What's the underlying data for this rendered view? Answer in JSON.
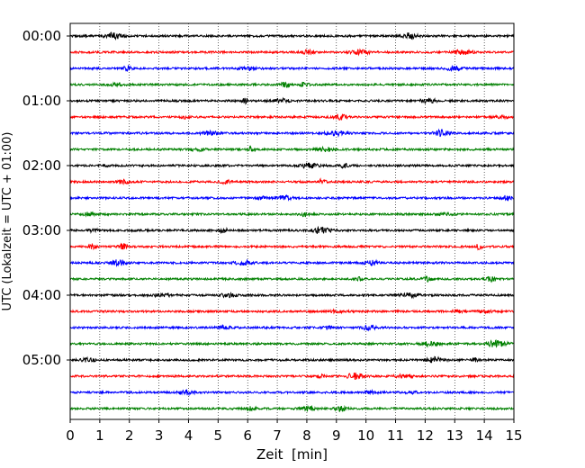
{
  "chart_data": {
    "type": "line",
    "title": "",
    "xlabel": "Zeit  [min]",
    "ylabel": "UTC (Lokalzeit = UTC + 01:00)",
    "xlim": [
      0,
      15
    ],
    "x_ticks": [
      "0",
      "1",
      "2",
      "3",
      "4",
      "5",
      "6",
      "7",
      "8",
      "9",
      "10",
      "11",
      "12",
      "13",
      "14",
      "15"
    ],
    "y_ticks": [
      "00:00",
      "01:00",
      "02:00",
      "03:00",
      "04:00",
      "05:00"
    ],
    "grid": "vertical dotted lines at each minute",
    "trace_interval_minutes": 15,
    "trace_colors": [
      "#000000",
      "#ff0000",
      "#0000ff",
      "#008000"
    ],
    "series": [
      {
        "start": "00:00",
        "color": "#000000"
      },
      {
        "start": "00:15",
        "color": "#ff0000"
      },
      {
        "start": "00:30",
        "color": "#0000ff"
      },
      {
        "start": "00:45",
        "color": "#008000"
      },
      {
        "start": "01:00",
        "color": "#000000"
      },
      {
        "start": "01:15",
        "color": "#ff0000"
      },
      {
        "start": "01:30",
        "color": "#0000ff"
      },
      {
        "start": "01:45",
        "color": "#008000"
      },
      {
        "start": "02:00",
        "color": "#000000"
      },
      {
        "start": "02:15",
        "color": "#ff0000"
      },
      {
        "start": "02:30",
        "color": "#0000ff"
      },
      {
        "start": "02:45",
        "color": "#008000"
      },
      {
        "start": "03:00",
        "color": "#000000"
      },
      {
        "start": "03:15",
        "color": "#ff0000"
      },
      {
        "start": "03:30",
        "color": "#0000ff"
      },
      {
        "start": "03:45",
        "color": "#008000"
      },
      {
        "start": "04:00",
        "color": "#000000"
      },
      {
        "start": "04:15",
        "color": "#ff0000"
      },
      {
        "start": "04:30",
        "color": "#0000ff"
      },
      {
        "start": "04:45",
        "color": "#008000"
      },
      {
        "start": "05:00",
        "color": "#000000"
      },
      {
        "start": "05:15",
        "color": "#ff0000"
      },
      {
        "start": "05:30",
        "color": "#0000ff"
      },
      {
        "start": "05:45",
        "color": "#008000"
      }
    ]
  }
}
